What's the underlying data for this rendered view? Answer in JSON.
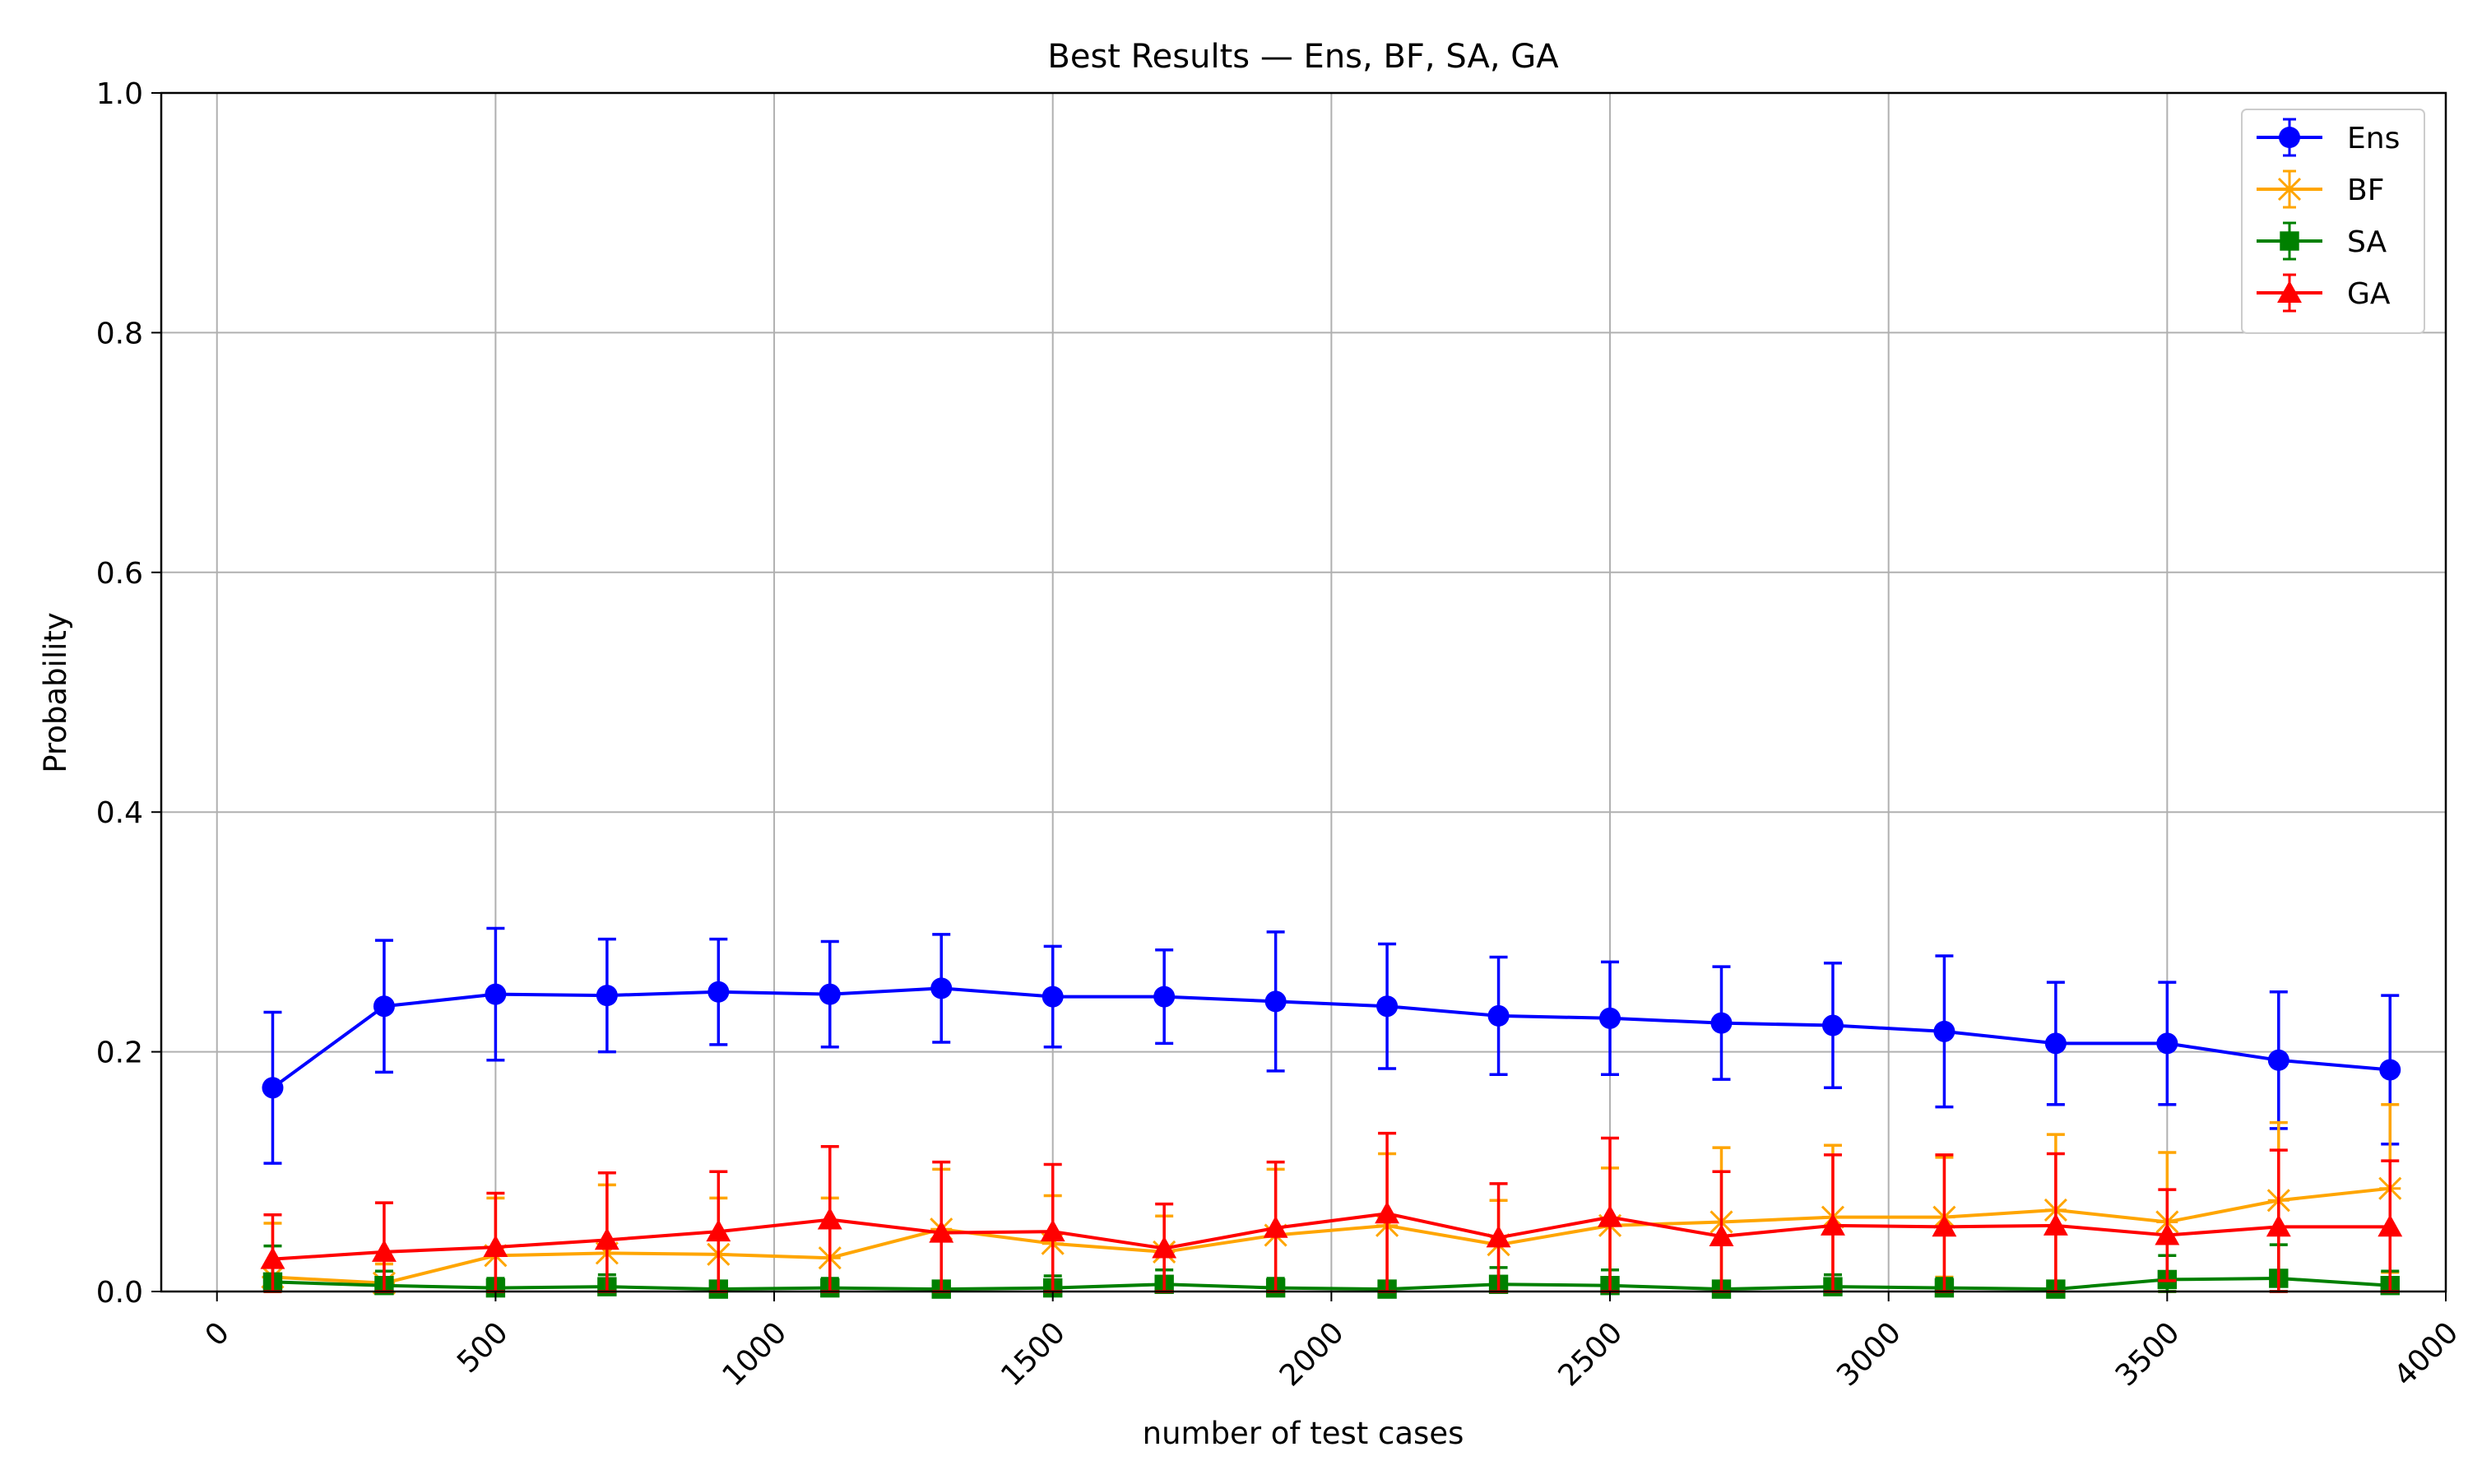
{
  "chart_data": {
    "type": "line",
    "title": "Best Results — Ens, BF, SA, GA",
    "xlabel": "number of test cases",
    "ylabel": "Probability",
    "xlim": [
      -100,
      4000
    ],
    "ylim": [
      0,
      1.0
    ],
    "xticks": [
      0,
      500,
      1000,
      1500,
      2000,
      2500,
      3000,
      3500,
      4000
    ],
    "yticks": [
      0.0,
      0.2,
      0.4,
      0.6,
      0.8,
      1.0
    ],
    "grid": true,
    "legend_position": "top-right",
    "x": [
      100,
      300,
      500,
      700,
      900,
      1100,
      1300,
      1500,
      1700,
      1900,
      2100,
      2300,
      2500,
      2700,
      2900,
      3100,
      3300,
      3500,
      3700,
      3900
    ],
    "series": [
      {
        "name": "Ens",
        "color": "#0000ff",
        "marker": "circle",
        "values": [
          0.17,
          0.238,
          0.248,
          0.247,
          0.25,
          0.248,
          0.253,
          0.246,
          0.246,
          0.242,
          0.238,
          0.23,
          0.228,
          0.224,
          0.222,
          0.217,
          0.207,
          0.207,
          0.193,
          0.185
        ],
        "errors": [
          0.063,
          0.055,
          0.055,
          0.047,
          0.044,
          0.044,
          0.045,
          0.042,
          0.039,
          0.058,
          0.052,
          0.049,
          0.047,
          0.047,
          0.052,
          0.063,
          0.051,
          0.051,
          0.057,
          0.062
        ]
      },
      {
        "name": "BF",
        "color": "#ffa500",
        "marker": "x",
        "values": [
          0.012,
          0.007,
          0.03,
          0.032,
          0.031,
          0.028,
          0.052,
          0.04,
          0.033,
          0.047,
          0.055,
          0.039,
          0.055,
          0.058,
          0.062,
          0.062,
          0.068,
          0.058,
          0.076,
          0.086
        ],
        "errors": [
          0.045,
          0.016,
          0.048,
          0.057,
          0.047,
          0.05,
          0.05,
          0.04,
          0.03,
          0.055,
          0.06,
          0.037,
          0.048,
          0.062,
          0.06,
          0.05,
          0.063,
          0.058,
          0.065,
          0.07
        ]
      },
      {
        "name": "SA",
        "color": "#008000",
        "marker": "square",
        "values": [
          0.008,
          0.005,
          0.003,
          0.004,
          0.002,
          0.003,
          0.002,
          0.003,
          0.006,
          0.003,
          0.002,
          0.006,
          0.005,
          0.002,
          0.004,
          0.003,
          0.002,
          0.01,
          0.011,
          0.005
        ],
        "errors": [
          0.03,
          0.012,
          0.008,
          0.01,
          0.006,
          0.008,
          0.006,
          0.01,
          0.012,
          0.008,
          0.006,
          0.014,
          0.013,
          0.006,
          0.01,
          0.008,
          0.006,
          0.02,
          0.028,
          0.012
        ]
      },
      {
        "name": "GA",
        "color": "#ff0000",
        "marker": "triangle",
        "values": [
          0.027,
          0.033,
          0.037,
          0.043,
          0.05,
          0.06,
          0.049,
          0.05,
          0.036,
          0.053,
          0.065,
          0.045,
          0.062,
          0.046,
          0.055,
          0.054,
          0.055,
          0.047,
          0.054,
          0.054
        ],
        "errors": [
          0.037,
          0.041,
          0.045,
          0.056,
          0.05,
          0.061,
          0.059,
          0.056,
          0.037,
          0.055,
          0.067,
          0.045,
          0.066,
          0.054,
          0.059,
          0.06,
          0.06,
          0.038,
          0.064,
          0.055
        ]
      }
    ]
  }
}
